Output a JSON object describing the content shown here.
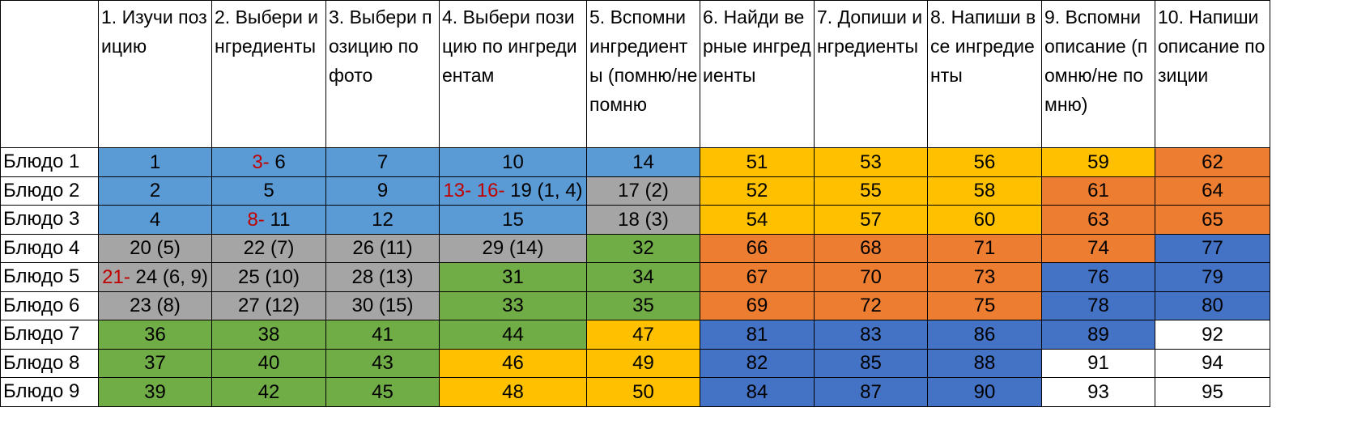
{
  "corner": "",
  "headers": [
    "1. Изучи позицию",
    "2. Выбери ингредиенты",
    "3. Выбери позицию по фото",
    "4. Выбери позицию по ингредиентам",
    "5. Вспомни ингредиенты (помню/не помню",
    "6. Найди верные ингредиенты",
    "7. Допиши ингредиенты",
    "8. Напиши все ингредиенты",
    "9. Вспомни описание (помню/не помню)",
    "10. Напиши описание позиции"
  ],
  "colors": {
    "blue": "#5b9bd5",
    "gray": "#a5a5a5",
    "orange": "#ffc000",
    "red": "#ed7d31",
    "green": "#70ad47",
    "dblue": "#4472c4",
    "white": "#ffffff",
    "prefix_text": "#c00000"
  },
  "rows": [
    {
      "label": "Блюдо 1",
      "cells": [
        {
          "pre": "",
          "text": "1",
          "color": "blue"
        },
        {
          "pre": "3- ",
          "text": "6",
          "color": "blue"
        },
        {
          "pre": "",
          "text": "7",
          "color": "blue"
        },
        {
          "pre": "",
          "text": "10",
          "color": "blue"
        },
        {
          "pre": "",
          "text": "14",
          "color": "blue"
        },
        {
          "pre": "",
          "text": "51",
          "color": "orange"
        },
        {
          "pre": "",
          "text": "53",
          "color": "orange"
        },
        {
          "pre": "",
          "text": "56",
          "color": "orange"
        },
        {
          "pre": "",
          "text": "59",
          "color": "orange"
        },
        {
          "pre": "",
          "text": "62",
          "color": "red"
        }
      ]
    },
    {
      "label": "Блюдо 2",
      "cells": [
        {
          "pre": "",
          "text": "2",
          "color": "blue"
        },
        {
          "pre": "",
          "text": "5",
          "color": "blue"
        },
        {
          "pre": "",
          "text": "9",
          "color": "blue"
        },
        {
          "pre": "13- 16- ",
          "text": "19 (1, 4)",
          "color": "blue"
        },
        {
          "pre": "",
          "text": "17 (2)",
          "color": "gray"
        },
        {
          "pre": "",
          "text": "52",
          "color": "orange"
        },
        {
          "pre": "",
          "text": "55",
          "color": "orange"
        },
        {
          "pre": "",
          "text": "58",
          "color": "orange"
        },
        {
          "pre": "",
          "text": "61",
          "color": "red"
        },
        {
          "pre": "",
          "text": "64",
          "color": "red"
        }
      ]
    },
    {
      "label": "Блюдо 3",
      "cells": [
        {
          "pre": "",
          "text": "4",
          "color": "blue"
        },
        {
          "pre": "8- ",
          "text": "11",
          "color": "blue"
        },
        {
          "pre": "",
          "text": "12",
          "color": "blue"
        },
        {
          "pre": "",
          "text": "15",
          "color": "blue"
        },
        {
          "pre": "",
          "text": "18 (3)",
          "color": "gray"
        },
        {
          "pre": "",
          "text": "54",
          "color": "orange"
        },
        {
          "pre": "",
          "text": "57",
          "color": "orange"
        },
        {
          "pre": "",
          "text": "60",
          "color": "orange"
        },
        {
          "pre": "",
          "text": "63",
          "color": "red"
        },
        {
          "pre": "",
          "text": "65",
          "color": "red"
        }
      ]
    },
    {
      "label": "Блюдо 4",
      "cells": [
        {
          "pre": "",
          "text": "20 (5)",
          "color": "gray"
        },
        {
          "pre": "",
          "text": "22 (7)",
          "color": "gray"
        },
        {
          "pre": "",
          "text": "26 (11)",
          "color": "gray"
        },
        {
          "pre": "",
          "text": "29 (14)",
          "color": "gray"
        },
        {
          "pre": "",
          "text": "32",
          "color": "green"
        },
        {
          "pre": "",
          "text": "66",
          "color": "red"
        },
        {
          "pre": "",
          "text": "68",
          "color": "red"
        },
        {
          "pre": "",
          "text": "71",
          "color": "red"
        },
        {
          "pre": "",
          "text": "74",
          "color": "red"
        },
        {
          "pre": "",
          "text": "77",
          "color": "dblue"
        }
      ]
    },
    {
      "label": "Блюдо 5",
      "cells": [
        {
          "pre": "21- ",
          "text": "24 (6, 9)",
          "color": "gray"
        },
        {
          "pre": "",
          "text": "25 (10)",
          "color": "gray"
        },
        {
          "pre": "",
          "text": "28 (13)",
          "color": "gray"
        },
        {
          "pre": "",
          "text": "31",
          "color": "green"
        },
        {
          "pre": "",
          "text": "34",
          "color": "green"
        },
        {
          "pre": "",
          "text": "67",
          "color": "red"
        },
        {
          "pre": "",
          "text": "70",
          "color": "red"
        },
        {
          "pre": "",
          "text": "73",
          "color": "red"
        },
        {
          "pre": "",
          "text": "76",
          "color": "dblue"
        },
        {
          "pre": "",
          "text": "79",
          "color": "dblue"
        }
      ]
    },
    {
      "label": "Блюдо 6",
      "cells": [
        {
          "pre": "",
          "text": "23 (8)",
          "color": "gray"
        },
        {
          "pre": "",
          "text": "27 (12)",
          "color": "gray"
        },
        {
          "pre": "",
          "text": "30 (15)",
          "color": "gray"
        },
        {
          "pre": "",
          "text": "33",
          "color": "green"
        },
        {
          "pre": "",
          "text": "35",
          "color": "green"
        },
        {
          "pre": "",
          "text": "69",
          "color": "red"
        },
        {
          "pre": "",
          "text": "72",
          "color": "red"
        },
        {
          "pre": "",
          "text": "75",
          "color": "red"
        },
        {
          "pre": "",
          "text": "78",
          "color": "dblue"
        },
        {
          "pre": "",
          "text": "80",
          "color": "dblue"
        }
      ]
    },
    {
      "label": "Блюдо 7",
      "cells": [
        {
          "pre": "",
          "text": "36",
          "color": "green"
        },
        {
          "pre": "",
          "text": "38",
          "color": "green"
        },
        {
          "pre": "",
          "text": "41",
          "color": "green"
        },
        {
          "pre": "",
          "text": "44",
          "color": "green"
        },
        {
          "pre": "",
          "text": "47",
          "color": "orange"
        },
        {
          "pre": "",
          "text": "81",
          "color": "dblue"
        },
        {
          "pre": "",
          "text": "83",
          "color": "dblue"
        },
        {
          "pre": "",
          "text": "86",
          "color": "dblue"
        },
        {
          "pre": "",
          "text": "89",
          "color": "dblue"
        },
        {
          "pre": "",
          "text": "92",
          "color": "white"
        }
      ]
    },
    {
      "label": "Блюдо 8",
      "cells": [
        {
          "pre": "",
          "text": "37",
          "color": "green"
        },
        {
          "pre": "",
          "text": "40",
          "color": "green"
        },
        {
          "pre": "",
          "text": "43",
          "color": "green"
        },
        {
          "pre": "",
          "text": "46",
          "color": "orange"
        },
        {
          "pre": "",
          "text": "49",
          "color": "orange"
        },
        {
          "pre": "",
          "text": "82",
          "color": "dblue"
        },
        {
          "pre": "",
          "text": "85",
          "color": "dblue"
        },
        {
          "pre": "",
          "text": "88",
          "color": "dblue"
        },
        {
          "pre": "",
          "text": "91",
          "color": "white"
        },
        {
          "pre": "",
          "text": "94",
          "color": "white"
        }
      ]
    },
    {
      "label": "Блюдо 9",
      "cells": [
        {
          "pre": "",
          "text": "39",
          "color": "green"
        },
        {
          "pre": "",
          "text": "42",
          "color": "green"
        },
        {
          "pre": "",
          "text": "45",
          "color": "green"
        },
        {
          "pre": "",
          "text": "48",
          "color": "orange"
        },
        {
          "pre": "",
          "text": "50",
          "color": "orange"
        },
        {
          "pre": "",
          "text": "84",
          "color": "dblue"
        },
        {
          "pre": "",
          "text": "87",
          "color": "dblue"
        },
        {
          "pre": "",
          "text": "90",
          "color": "dblue"
        },
        {
          "pre": "",
          "text": "93",
          "color": "white"
        },
        {
          "pre": "",
          "text": "95",
          "color": "white"
        }
      ]
    }
  ]
}
